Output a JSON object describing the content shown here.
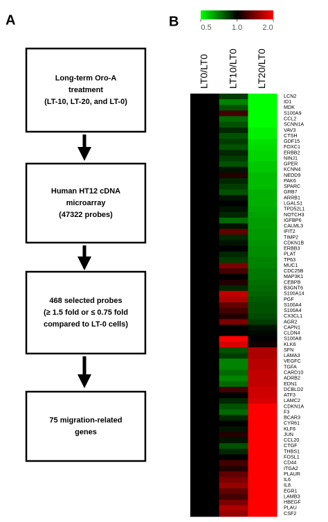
{
  "panel_a": {
    "label": "A",
    "boxes": [
      [
        "Long-term Oro-A",
        "treatment",
        "(LT-10, LT-20, and LT-0)"
      ],
      [
        "Human HT12 cDNA",
        "microarray",
        "(47322 probes)"
      ],
      [
        "468 selected probes",
        "(≥ 1.5 fold or  ≤ 0.75 fold",
        "compared to LT-0 cells)"
      ],
      [
        "75 migration-related",
        "genes"
      ]
    ]
  },
  "chart_data": {
    "type": "heatmap",
    "label": "B",
    "colormap": [
      "#00ff00",
      "#000000",
      "#ff0000"
    ],
    "log_scale": true,
    "clim": [
      0.5,
      2
    ],
    "cticks": [
      0.5,
      {
        "value": 1,
        "label": "1.0"
      },
      {
        "value": 2,
        "label": "2.0"
      }
    ],
    "rows": [
      "LCN2",
      "ID1",
      "MDK",
      "S100A9",
      "CCL2",
      "SCNN1A",
      "VAV3",
      "CTSH",
      "GDF15",
      "FOXC1",
      "ERBB2",
      "NINJ1",
      "GPER",
      "KCNN4",
      "NEDD9",
      "PAK6",
      "SPARC",
      "GRB7",
      "ARRB1",
      "LGALS1",
      "TPD52L1",
      "NOTCH3",
      "IGFBP6",
      "CALML3",
      "IFIT2",
      "TIMP2",
      "CDKN1B",
      "ERBB3",
      "PLAT",
      "TP63",
      "MUC1",
      "CDC25B",
      "MAP3K1",
      "CEBPB",
      "B3GNT6",
      "S100A14",
      "PGF",
      "S100A4",
      "S100A4",
      "CX3CL1",
      "AGR2",
      "CAPN1",
      "CLDN4",
      "S100A8",
      "KLK6",
      "SFN",
      "LAMA3",
      "VEGFC",
      "TGFA",
      "CARD10",
      "ADRB2",
      "EDN1",
      "DCBLD2",
      "ATF3",
      "LAMC2",
      "CDKN1A",
      "F3",
      "BCAR3",
      "CYR61",
      "KLF6",
      "JUN",
      "CCL20",
      "CTGF",
      "THBS1",
      "FOSL1",
      "CD44",
      "ITGA2",
      "PLAUR",
      "IL6",
      "IL8",
      "EGR1",
      "LAMB3",
      "HBEGF",
      "PLAU",
      "CSF2"
    ],
    "series": [
      {
        "name": "LT0/LT0",
        "values": [
          1,
          1,
          1,
          1,
          1,
          1,
          1,
          1,
          1,
          1,
          1,
          1,
          1,
          1,
          1,
          1,
          1,
          1,
          1,
          1,
          1,
          1,
          1,
          1,
          1,
          1,
          1,
          1,
          1,
          1,
          1,
          1,
          1,
          1,
          1,
          1,
          1,
          1,
          1,
          1,
          1,
          1,
          1,
          1,
          1,
          1,
          1,
          1,
          1,
          1,
          1,
          1,
          1,
          1,
          1,
          1,
          1,
          1,
          1,
          1,
          1,
          1,
          1,
          1,
          1,
          1,
          1,
          1,
          1,
          1,
          1,
          1,
          1,
          1,
          1
        ]
      },
      {
        "name": "LT10/LT0",
        "values": [
          0.85,
          0.7,
          0.8,
          1.2,
          0.75,
          0.8,
          0.9,
          0.8,
          0.85,
          0.8,
          0.9,
          0.85,
          0.8,
          0.95,
          1.1,
          0.9,
          0.85,
          0.8,
          0.95,
          1,
          0.95,
          0.9,
          0.75,
          0.95,
          1.3,
          0.9,
          0.95,
          1,
          0.9,
          0.85,
          1.4,
          1.2,
          1,
          1.1,
          0.9,
          1.7,
          1.6,
          1.3,
          1.2,
          1.1,
          1.4,
          1,
          1,
          2,
          1.8,
          0.8,
          0.85,
          0.7,
          0.7,
          0.75,
          0.7,
          0.75,
          1.2,
          1,
          0.9,
          0.8,
          0.75,
          0.9,
          1,
          0.95,
          1.1,
          0.95,
          0.8,
          0.9,
          1,
          1.2,
          1.1,
          1.3,
          1.4,
          1.5,
          1.3,
          1.2,
          1.4,
          1.6,
          1.5
        ]
      },
      {
        "name": "LT20/LT0",
        "values": [
          0.5,
          0.5,
          0.5,
          0.5,
          0.5,
          0.5,
          0.52,
          0.52,
          0.54,
          0.55,
          0.56,
          0.56,
          0.58,
          0.58,
          0.6,
          0.6,
          0.6,
          0.62,
          0.62,
          0.62,
          0.63,
          0.64,
          0.65,
          0.65,
          0.66,
          0.66,
          0.67,
          0.68,
          0.68,
          0.7,
          0.7,
          0.72,
          0.72,
          0.74,
          0.75,
          0.76,
          0.78,
          0.8,
          0.8,
          0.82,
          0.85,
          0.95,
          0.98,
          1,
          1.05,
          1.6,
          1.6,
          1.65,
          1.65,
          1.7,
          1.7,
          1.7,
          1.75,
          1.75,
          1.8,
          2,
          2,
          2,
          2,
          2,
          2,
          2,
          2,
          2,
          2,
          2,
          2,
          2,
          2,
          2,
          2,
          2,
          2,
          2,
          2
        ]
      }
    ]
  }
}
